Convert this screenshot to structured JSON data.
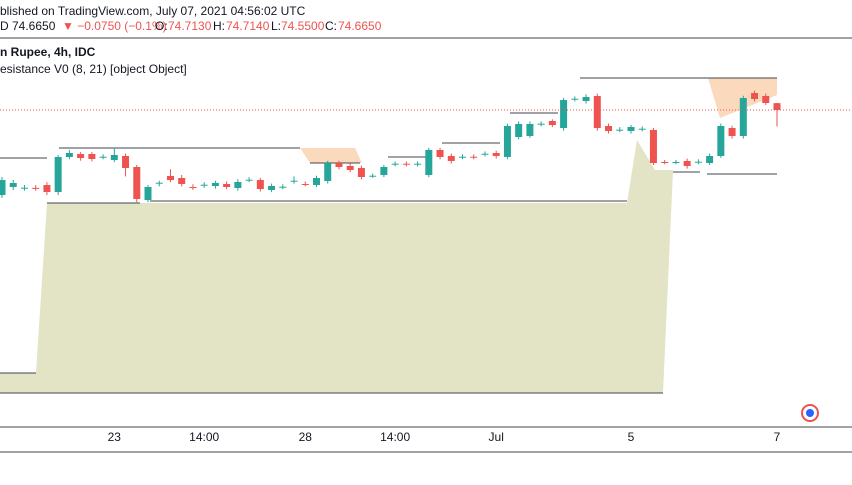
{
  "header": {
    "published": "blished on TradingView.com, July 07, 2021 04:56:02 UTC",
    "symbol": "D",
    "last": "74.6650",
    "change": "▼ −0.0750 (−0.1%)",
    "ohlc": [
      {
        "label": "O:",
        "value": "74.7130"
      },
      {
        "label": "H:",
        "value": "74.7140"
      },
      {
        "label": "L:",
        "value": "74.5500"
      },
      {
        "label": "C:",
        "value": "74.6650"
      }
    ],
    "instrument": "n Rupee, 4h, IDC",
    "indicator": "esistance V0 (8, 21) [object Object]"
  },
  "chart_data": {
    "type": "candlestick",
    "up_color": "#26a69a",
    "down_color": "#ef5350",
    "ylim": [
      72.46,
      75.155
    ],
    "categories": [
      null,
      null,
      null,
      null,
      null,
      null,
      null,
      null,
      null,
      null,
      "23",
      null,
      null,
      null,
      null,
      null,
      null,
      null,
      "14:00",
      null,
      null,
      null,
      null,
      null,
      null,
      null,
      null,
      "28",
      null,
      null,
      null,
      null,
      null,
      null,
      null,
      "14:00",
      null,
      null,
      null,
      null,
      null,
      null,
      null,
      null,
      "Jul",
      null,
      null,
      null,
      null,
      null,
      null,
      null,
      null,
      null,
      null,
      null,
      "5",
      null,
      null,
      null,
      null,
      null,
      null,
      null,
      null,
      null,
      null,
      null,
      null,
      "7"
    ],
    "open": [
      74.07,
      74.126,
      74.119,
      74.12,
      74.14,
      74.091,
      74.336,
      74.357,
      74.357,
      74.336,
      74.315,
      74.343,
      74.266,
      74.035,
      74.154,
      74.203,
      74.189,
      74.126,
      74.14,
      74.133,
      74.147,
      74.119,
      74.175,
      74.175,
      74.105,
      74.126,
      74.168,
      74.147,
      74.14,
      74.168,
      74.294,
      74.273,
      74.259,
      74.203,
      74.21,
      74.287,
      74.289,
      74.287,
      74.21,
      74.385,
      74.343,
      74.336,
      74.338,
      74.357,
      74.364,
      74.336,
      74.476,
      74.483,
      74.567,
      74.588,
      74.539,
      74.742,
      74.728,
      74.763,
      74.553,
      74.525,
      74.518,
      74.532,
      74.525,
      74.301,
      74.299,
      74.308,
      74.301,
      74.294,
      74.343,
      74.539,
      74.483,
      74.784,
      74.763,
      74.713
    ],
    "high": [
      74.196,
      74.175,
      74.14,
      74.14,
      74.16,
      74.35,
      74.385,
      74.37,
      74.37,
      74.355,
      74.4,
      74.36,
      74.28,
      74.14,
      74.17,
      74.25,
      74.21,
      74.145,
      74.16,
      74.17,
      74.165,
      74.18,
      74.195,
      74.19,
      74.15,
      74.145,
      74.2,
      74.165,
      74.205,
      74.31,
      74.31,
      74.29,
      74.275,
      74.22,
      74.28,
      74.305,
      74.305,
      74.305,
      74.4,
      74.4,
      74.36,
      74.355,
      74.355,
      74.375,
      74.38,
      74.57,
      74.585,
      74.585,
      74.585,
      74.6,
      74.75,
      74.76,
      74.775,
      74.78,
      74.57,
      74.545,
      74.56,
      74.55,
      74.54,
      74.315,
      74.315,
      74.325,
      74.32,
      74.36,
      74.57,
      74.555,
      74.765,
      74.8,
      74.78,
      74.714
    ],
    "low": [
      74.05,
      74.105,
      74.1,
      74.1,
      74.07,
      74.07,
      74.32,
      74.31,
      74.305,
      74.32,
      74.3,
      74.2,
      74.02,
      74.02,
      74.13,
      74.16,
      74.13,
      74.105,
      74.12,
      74.115,
      74.11,
      74.1,
      74.16,
      74.095,
      74.09,
      74.11,
      74.15,
      74.13,
      74.125,
      74.15,
      74.25,
      74.23,
      74.18,
      74.19,
      74.195,
      74.27,
      74.27,
      74.27,
      74.195,
      74.32,
      74.29,
      74.32,
      74.32,
      74.34,
      74.325,
      74.32,
      74.46,
      74.47,
      74.55,
      74.545,
      74.52,
      74.725,
      74.71,
      74.52,
      74.5,
      74.51,
      74.5,
      74.515,
      74.28,
      74.285,
      74.285,
      74.255,
      74.285,
      74.28,
      74.33,
      74.465,
      74.465,
      74.725,
      74.7,
      74.55
    ],
    "close": [
      74.175,
      74.154,
      74.121,
      74.118,
      74.091,
      74.336,
      74.364,
      74.329,
      74.322,
      74.338,
      74.35,
      74.259,
      74.042,
      74.126,
      74.156,
      74.175,
      74.147,
      74.124,
      74.142,
      74.154,
      74.126,
      74.161,
      74.177,
      74.112,
      74.133,
      74.128,
      74.17,
      74.145,
      74.189,
      74.294,
      74.266,
      74.245,
      74.196,
      74.205,
      74.266,
      74.289,
      74.287,
      74.289,
      74.385,
      74.336,
      74.308,
      74.338,
      74.336,
      74.359,
      74.343,
      74.553,
      74.567,
      74.567,
      74.569,
      74.56,
      74.735,
      74.744,
      74.756,
      74.539,
      74.518,
      74.527,
      74.546,
      74.534,
      74.294,
      74.299,
      74.301,
      74.273,
      74.303,
      74.343,
      74.553,
      74.483,
      74.749,
      74.742,
      74.714,
      74.665
    ]
  }
}
